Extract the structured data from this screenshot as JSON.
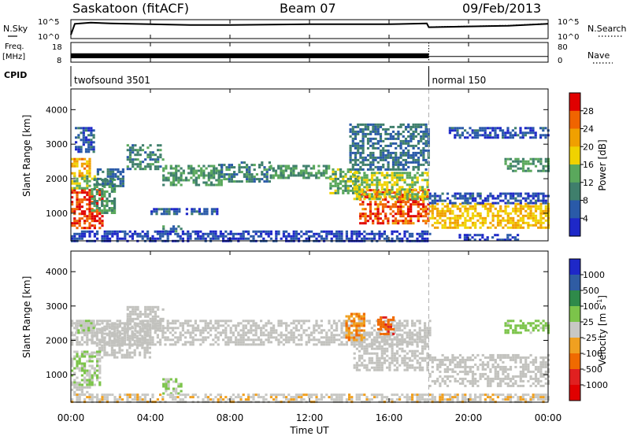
{
  "header": {
    "station": "Saskatoon (fitACF)",
    "beam": "Beam 07",
    "date": "09/Feb/2013"
  },
  "noise_panel": {
    "left_label": "N.Sky",
    "right_label": "N.Search",
    "tick_top": "10^5",
    "tick_bottom": "10^0"
  },
  "freq_panel": {
    "left_label_1": "Freq.",
    "left_label_2": "[MHz]",
    "tick_top": "18",
    "tick_bottom": "8",
    "right_label": "Nave",
    "right_tick_top": "80",
    "right_tick_bottom": "0"
  },
  "cpid_panel": {
    "label": "CPID",
    "modes": [
      {
        "name": "twofsound 3501",
        "start_hour": 0
      },
      {
        "name": "normal 150",
        "start_hour": 18
      }
    ]
  },
  "axes": {
    "xlabel": "Time UT",
    "x_ticks": [
      "00:00",
      "04:00",
      "08:00",
      "12:00",
      "16:00",
      "20:00",
      "00:00"
    ],
    "ylabel": "Slant Range [km]",
    "y_ticks": [
      "1000",
      "2000",
      "3000",
      "4000"
    ]
  },
  "colors": {
    "power_scale": [
      "#1e28c8",
      "#2a5aa8",
      "#3f7f6c",
      "#5aa85c",
      "#f0d200",
      "#f0a000",
      "#f06400",
      "#e00000"
    ],
    "velocity_scale": [
      "#1e28c8",
      "#2f5ca3",
      "#2f8a4a",
      "#7cc44a",
      "#c8c8c4",
      "#f0a020",
      "#f06a00",
      "#e02020",
      "#e00000"
    ],
    "ground_scatter": "#c2c2be"
  },
  "power_colorbar": {
    "label": "Power [dB]",
    "ticks": [
      "28",
      "24",
      "20",
      "16",
      "12",
      "8",
      "4"
    ]
  },
  "velocity_colorbar": {
    "label": "Velocity [m s",
    "label_exp": "-1",
    "ticks": [
      "1000",
      "500",
      "100",
      "25",
      "-25",
      "-100",
      "-500",
      "-1000"
    ]
  },
  "chart_data": [
    {
      "type": "line",
      "title": "N.Sky / N.Search",
      "ylim_log10": [
        0,
        5
      ],
      "x_hours": [
        0,
        0.2,
        1,
        2,
        4,
        6,
        8,
        10,
        12,
        14,
        16,
        17.9,
        18,
        19,
        20,
        22,
        24
      ],
      "nsky_log10": [
        1.0,
        3.9,
        4.2,
        4.0,
        3.8,
        3.6,
        3.6,
        3.7,
        3.8,
        3.8,
        3.8,
        4.0,
        3.0,
        3.1,
        3.2,
        3.4,
        3.9
      ],
      "nsearch_log10": [
        1.0,
        3.9,
        4.2,
        4.0,
        3.8,
        3.6,
        3.6,
        3.7,
        3.8,
        3.8,
        3.8,
        4.0,
        3.1,
        3.2,
        3.3,
        3.5,
        4.0
      ]
    },
    {
      "type": "area",
      "title": "Freq. / Nave",
      "freq_mhz": [
        {
          "start_hour": 0,
          "end_hour": 18,
          "low": 10.0,
          "high": 12.5
        },
        {
          "start_hour": 18,
          "end_hour": 24,
          "low": 10.9,
          "high": 10.9
        }
      ],
      "nave": [
        {
          "start_hour": 0,
          "end_hour": 18,
          "value": 30
        },
        {
          "start_hour": 18,
          "end_hour": 24,
          "value": 80
        }
      ]
    },
    {
      "type": "heatmap",
      "title": "Power [dB]",
      "xlim_hours": [
        0,
        24
      ],
      "ylim_km": [
        200,
        4600
      ],
      "zlim_db": [
        0,
        32
      ],
      "regions": [
        {
          "t0": 0.0,
          "t1": 1.6,
          "r0": 600,
          "r1": 1700,
          "power": 28
        },
        {
          "t0": 0.0,
          "t1": 1.3,
          "r0": 1700,
          "r1": 2100,
          "power": 15
        },
        {
          "t0": 0.0,
          "t1": 1.0,
          "r0": 2100,
          "r1": 2600,
          "power": 22
        },
        {
          "t0": 0.2,
          "t1": 1.2,
          "r0": 2800,
          "r1": 3500,
          "power": 6
        },
        {
          "t0": 1.0,
          "t1": 2.2,
          "r0": 1000,
          "r1": 2000,
          "power": 12
        },
        {
          "t0": 1.3,
          "t1": 2.6,
          "r0": 1800,
          "r1": 2300,
          "power": 8
        },
        {
          "t0": 2.8,
          "t1": 4.6,
          "r0": 2300,
          "r1": 3000,
          "power": 10
        },
        {
          "t0": 4.6,
          "t1": 7.6,
          "r0": 1800,
          "r1": 2400,
          "power": 12
        },
        {
          "t0": 7.4,
          "t1": 10.0,
          "r0": 1900,
          "r1": 2500,
          "power": 10
        },
        {
          "t0": 10.0,
          "t1": 13.0,
          "r0": 2000,
          "r1": 2400,
          "power": 12
        },
        {
          "t0": 13.0,
          "t1": 14.5,
          "r0": 1600,
          "r1": 2300,
          "power": 14
        },
        {
          "t0": 14.5,
          "t1": 18.0,
          "r0": 700,
          "r1": 1700,
          "power": 27
        },
        {
          "t0": 14.2,
          "t1": 18.0,
          "r0": 1400,
          "r1": 2200,
          "power": 16
        },
        {
          "t0": 14.0,
          "t1": 18.0,
          "r0": 2300,
          "r1": 3600,
          "power": 8
        },
        {
          "t0": 4.0,
          "t1": 7.4,
          "r0": 950,
          "r1": 1150,
          "power": 6
        },
        {
          "t0": 4.6,
          "t1": 5.6,
          "r0": 450,
          "r1": 650,
          "power": 9
        },
        {
          "t0": 0.0,
          "t1": 18.0,
          "r0": 200,
          "r1": 500,
          "power": 4
        },
        {
          "t0": 18.0,
          "t1": 24.0,
          "r0": 600,
          "r1": 1300,
          "power": 20
        },
        {
          "t0": 18.0,
          "t1": 24.0,
          "r0": 1300,
          "r1": 1600,
          "power": 5
        },
        {
          "t0": 19.5,
          "t1": 22.5,
          "r0": 250,
          "r1": 400,
          "power": 4
        },
        {
          "t0": 21.8,
          "t1": 24.0,
          "r0": 2200,
          "r1": 2600,
          "power": 12
        },
        {
          "t0": 19.0,
          "t1": 24.0,
          "r0": 3200,
          "r1": 3500,
          "power": 5
        }
      ]
    },
    {
      "type": "heatmap",
      "title": "Velocity [m s-1]",
      "xlim_hours": [
        0,
        24
      ],
      "ylim_km": [
        200,
        4600
      ],
      "zlim_ms": [
        -1000,
        1000
      ],
      "ground_scatter": [
        {
          "t0": 0.0,
          "t1": 18.0,
          "r0": 1900,
          "r1": 2600
        },
        {
          "t0": 1.0,
          "t1": 4.0,
          "r0": 1500,
          "r1": 2500
        },
        {
          "t0": 2.8,
          "t1": 4.6,
          "r0": 2300,
          "r1": 3000
        },
        {
          "t0": 14.2,
          "t1": 18.0,
          "r0": 1100,
          "r1": 2200
        },
        {
          "t0": 18.0,
          "t1": 24.0,
          "r0": 700,
          "r1": 1600
        },
        {
          "t0": 0.0,
          "t1": 1.0,
          "r0": 400,
          "r1": 800
        }
      ],
      "regions": [
        {
          "t0": 0.0,
          "t1": 1.4,
          "r0": 700,
          "r1": 1700,
          "velocity": 120
        },
        {
          "t0": 0.2,
          "t1": 1.2,
          "r0": 2200,
          "r1": 2600,
          "velocity": 60
        },
        {
          "t0": 4.6,
          "t1": 5.6,
          "r0": 450,
          "r1": 900,
          "velocity": 150
        },
        {
          "t0": 13.8,
          "t1": 14.8,
          "r0": 2000,
          "r1": 2800,
          "velocity": -300
        },
        {
          "t0": 15.4,
          "t1": 16.2,
          "r0": 2200,
          "r1": 2700,
          "velocity": -500
        },
        {
          "t0": 21.8,
          "t1": 24.0,
          "r0": 2200,
          "r1": 2600,
          "velocity": 200
        },
        {
          "t0": 0.0,
          "t1": 24.0,
          "r0": 200,
          "r1": 450,
          "velocity": -60
        }
      ]
    }
  ]
}
